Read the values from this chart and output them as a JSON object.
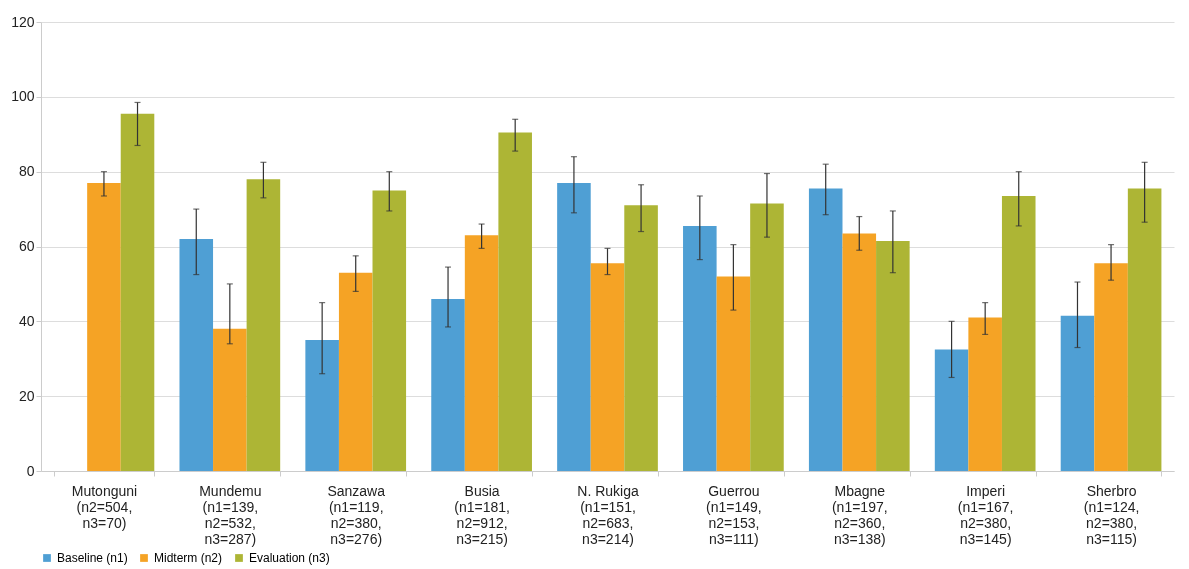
{
  "chart_data": {
    "type": "bar",
    "categories": [
      "Mutonguni\n(n2=504,\nn3=70)",
      "Mundemu\n(n1=139,\nn2=532,\nn3=287)",
      "Sanzawa\n(n1=119,\nn2=380,\nn3=276)",
      "Busia\n(n1=181,\nn2=912,\nn3=215)",
      "N. Rukiga\n(n1=151,\nn2=683,\nn3=214)",
      "Guerrou\n(n1=149,\nn2=153,\nn3=111)",
      "Mbagne\n(n1=197,\nn2=360,\nn3=138)",
      "Imperi\n(n1=167,\nn2=380,\nn3=145)",
      "Sherbro\n(n1=124,\nn2=380,\nn3=115)"
    ],
    "series": [
      {
        "name": "Baseline (n1)",
        "color": "#4f9fd4",
        "values": [
          null,
          62,
          35,
          46,
          77,
          65.5,
          75.5,
          32.5,
          41.5
        ],
        "errors": [
          null,
          [
            52.5,
            70
          ],
          [
            26,
            45
          ],
          [
            38.5,
            54.5
          ],
          [
            69,
            84
          ],
          [
            56.5,
            73.5
          ],
          [
            68.5,
            82
          ],
          [
            25,
            40
          ],
          [
            33,
            50.5
          ]
        ]
      },
      {
        "name": "Midterm (n2)",
        "color": "#f5a325",
        "values": [
          77,
          38,
          53,
          63,
          55.5,
          52,
          63.5,
          41,
          55.5
        ],
        "errors": [
          [
            73.5,
            80
          ],
          [
            34,
            50
          ],
          [
            48,
            57.5
          ],
          [
            59.5,
            66
          ],
          [
            52.5,
            59.5
          ],
          [
            43,
            60.5
          ],
          [
            59,
            68
          ],
          [
            36.5,
            45
          ],
          [
            51,
            60.5
          ]
        ]
      },
      {
        "name": "Evaluation (n3)",
        "color": "#adb535",
        "values": [
          95.5,
          78,
          75,
          90.5,
          71,
          71.5,
          61.5,
          73.5,
          75.5
        ],
        "errors": [
          [
            87,
            98.5
          ],
          [
            73,
            82.5
          ],
          [
            69.5,
            80
          ],
          [
            85.5,
            94
          ],
          [
            64,
            76.5
          ],
          [
            62.5,
            79.5
          ],
          [
            53,
            69.5
          ],
          [
            65.5,
            80
          ],
          [
            66.5,
            82.5
          ]
        ]
      }
    ],
    "ylim": [
      0,
      120
    ],
    "yticks": [
      0,
      20,
      40,
      60,
      80,
      100,
      120
    ],
    "grid": "y",
    "legend": "bottom"
  }
}
